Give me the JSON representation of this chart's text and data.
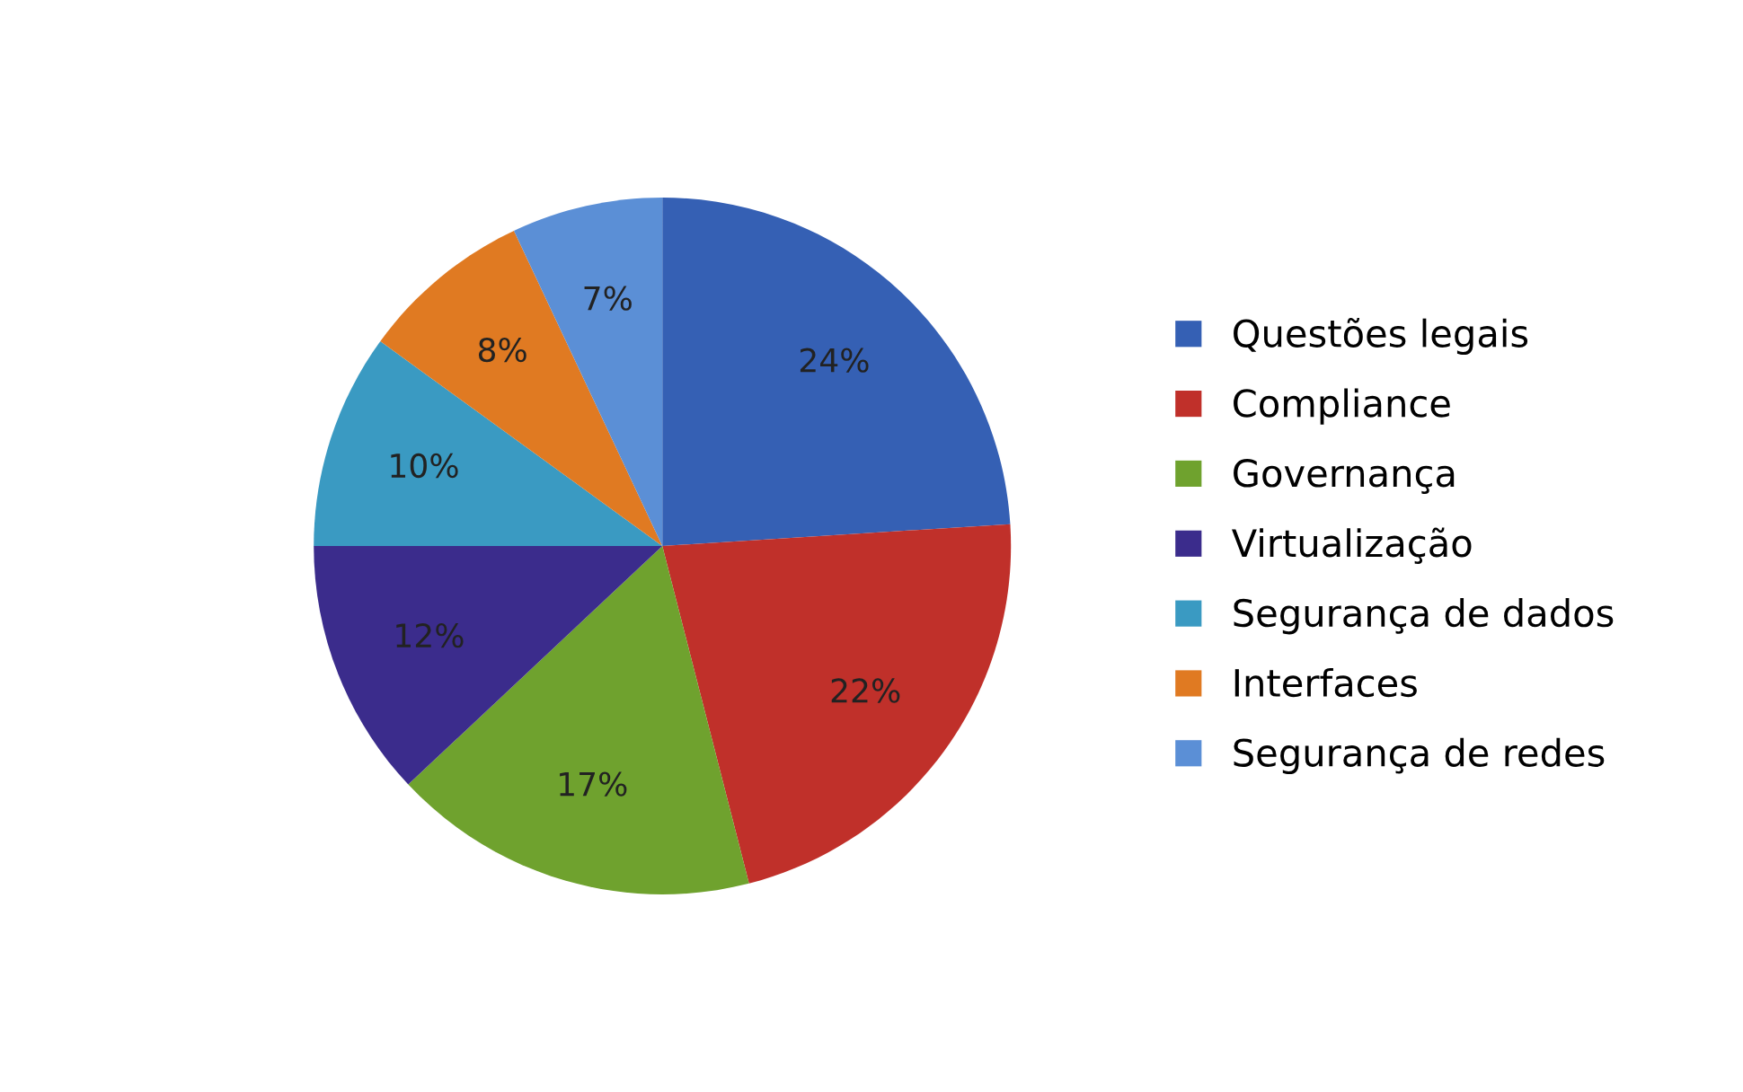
{
  "chart_data": {
    "type": "pie",
    "categories": [
      "Questões legais",
      "Compliance",
      "Governança",
      "Virtualização",
      "Segurança de dados",
      "Interfaces",
      "Segurança de redes"
    ],
    "values": [
      24,
      22,
      17,
      12,
      10,
      8,
      7
    ],
    "value_labels": [
      "24%",
      "22%",
      "17%",
      "12%",
      "10%",
      "8%",
      "7%"
    ],
    "colors": [
      "#3560b4",
      "#c0302a",
      "#6fa22e",
      "#3b2c8c",
      "#3a9ac2",
      "#e07a22",
      "#5b8fd6"
    ],
    "legend": "right"
  }
}
